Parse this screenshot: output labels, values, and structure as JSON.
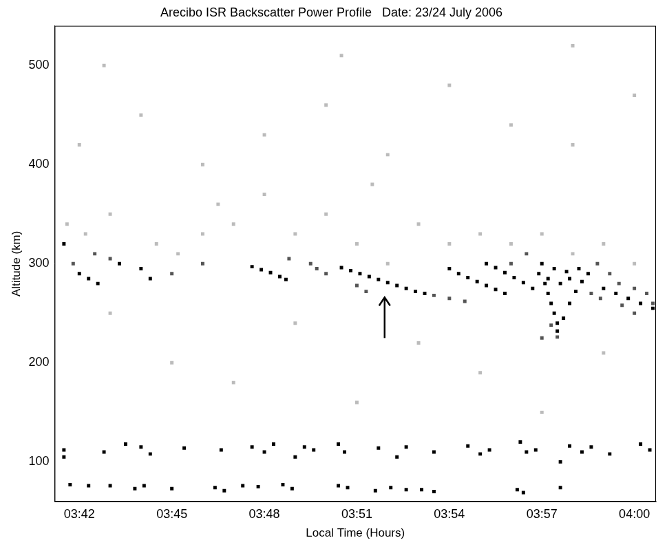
{
  "chart_data": {
    "type": "scatter",
    "title": "Arecibo ISR Backscatter Power Profile   Date: 23/24 July 2006",
    "x_label": "Local Time (Hours)",
    "y_label": "Altitude (km)",
    "xlim": [
      221.2,
      240.7
    ],
    "xticks": [
      {
        "value": 222,
        "label": "03:42"
      },
      {
        "value": 225,
        "label": "03:45"
      },
      {
        "value": 228,
        "label": "03:48"
      },
      {
        "value": 231,
        "label": "03:51"
      },
      {
        "value": 234,
        "label": "03:54"
      },
      {
        "value": 237,
        "label": "03:57"
      },
      {
        "value": 240,
        "label": "04:00"
      }
    ],
    "ylim": [
      60,
      540
    ],
    "yticks": [
      100,
      200,
      300,
      400,
      500
    ],
    "grid": false,
    "marker": "square",
    "series": [
      {
        "color": "#bbbbbb",
        "x": [
          221.6,
          222.2,
          223.0,
          224.5,
          225.2,
          226.0,
          226.5,
          227.0,
          228.0,
          229.0,
          230.0,
          231.0,
          231.5,
          232.0,
          233.0,
          234.0,
          235.0,
          236.0,
          237.0,
          238.0,
          239.0,
          240.0,
          222.0,
          224.0,
          226.0,
          228.0,
          230.0,
          232.0,
          234.0,
          236.0,
          238.0,
          240.0,
          223.0,
          225.0,
          227.0,
          229.0,
          231.0,
          233.0,
          235.0,
          237.0,
          239.0,
          238.0,
          222.8,
          230.5
        ],
        "values": [
          340,
          330,
          350,
          320,
          310,
          330,
          360,
          340,
          370,
          330,
          350,
          320,
          380,
          300,
          340,
          320,
          330,
          320,
          330,
          310,
          320,
          300,
          420,
          450,
          400,
          430,
          460,
          410,
          480,
          440,
          420,
          470,
          250,
          200,
          180,
          240,
          160,
          220,
          190,
          150,
          210,
          520,
          500,
          510
        ]
      },
      {
        "color": "#555555",
        "x": [
          221.8,
          222.5,
          223.0,
          225.0,
          226.0,
          228.8,
          229.5,
          229.7,
          233.5,
          234.0,
          234.5,
          236.0,
          236.5,
          238.8,
          239.2,
          239.5,
          240.0,
          240.4,
          240.6,
          237.0,
          237.5,
          237.3,
          238.6,
          238.9,
          239.6,
          240.0,
          230.0,
          231.0,
          231.3
        ],
        "values": [
          300,
          310,
          305,
          290,
          300,
          305,
          300,
          295,
          268,
          265,
          262,
          300,
          310,
          300,
          290,
          280,
          275,
          270,
          260,
          225,
          226,
          238,
          270,
          265,
          258,
          250,
          290,
          278,
          272
        ]
      },
      {
        "color": "#000000",
        "x": [
          227.6,
          227.9,
          228.2,
          228.5,
          228.7,
          230.5,
          230.8,
          231.1,
          231.4,
          231.7,
          232.0,
          232.3,
          232.6,
          232.9,
          233.2,
          234.0,
          234.3,
          234.6,
          234.9,
          235.2,
          235.5,
          235.8,
          235.2,
          235.5,
          235.8,
          236.1,
          236.4,
          236.7,
          236.9,
          237.1,
          237.2,
          237.3,
          237.4,
          237.5,
          237.5,
          237.7,
          237.9,
          238.1,
          238.3,
          238.5,
          237.0,
          237.4,
          237.8,
          238.2,
          237.6,
          237.2,
          237.9,
          239.0,
          239.4,
          239.8,
          240.2,
          240.6,
          221.5,
          222.0,
          222.3,
          222.6,
          223.3,
          224.0,
          224.3,
          221.5,
          221.5,
          222.8,
          223.5,
          224.0,
          224.3,
          225.4,
          226.6,
          227.6,
          228.0,
          228.3,
          229.0,
          229.3,
          229.6,
          230.4,
          230.6,
          231.7,
          232.3,
          232.6,
          233.5,
          234.6,
          235.0,
          235.3,
          236.3,
          236.5,
          236.8,
          237.6,
          237.9,
          238.3,
          238.6,
          239.2,
          240.2,
          240.5,
          221.7,
          222.3,
          223.0,
          223.8,
          224.1,
          225.0,
          226.4,
          226.7,
          227.3,
          227.8,
          228.6,
          228.9,
          230.4,
          230.7,
          231.6,
          232.1,
          232.6,
          233.1,
          233.5,
          236.2,
          236.4,
          237.6
        ],
        "values": [
          297,
          294,
          291,
          287,
          284,
          296,
          293,
          290,
          287,
          284,
          281,
          278,
          275,
          272,
          270,
          295,
          290,
          286,
          282,
          278,
          274,
          270,
          300,
          296,
          291,
          286,
          281,
          275,
          290,
          280,
          270,
          260,
          250,
          240,
          232,
          245,
          260,
          272,
          282,
          290,
          300,
          295,
          292,
          295,
          280,
          285,
          285,
          275,
          270,
          265,
          260,
          255,
          320,
          290,
          285,
          280,
          300,
          295,
          285,
          112,
          105,
          110,
          118,
          115,
          108,
          114,
          112,
          115,
          110,
          118,
          105,
          115,
          112,
          118,
          110,
          114,
          105,
          115,
          110,
          116,
          108,
          112,
          120,
          110,
          112,
          100,
          116,
          110,
          115,
          108,
          118,
          112,
          77,
          76,
          76,
          73,
          76,
          73,
          74,
          71,
          76,
          75,
          77,
          73,
          76,
          74,
          71,
          74,
          72,
          72,
          70,
          72,
          69,
          74
        ]
      }
    ],
    "annotations": [
      {
        "type": "arrow",
        "x": 231.9,
        "y_from": 225,
        "y_to": 266
      }
    ]
  }
}
